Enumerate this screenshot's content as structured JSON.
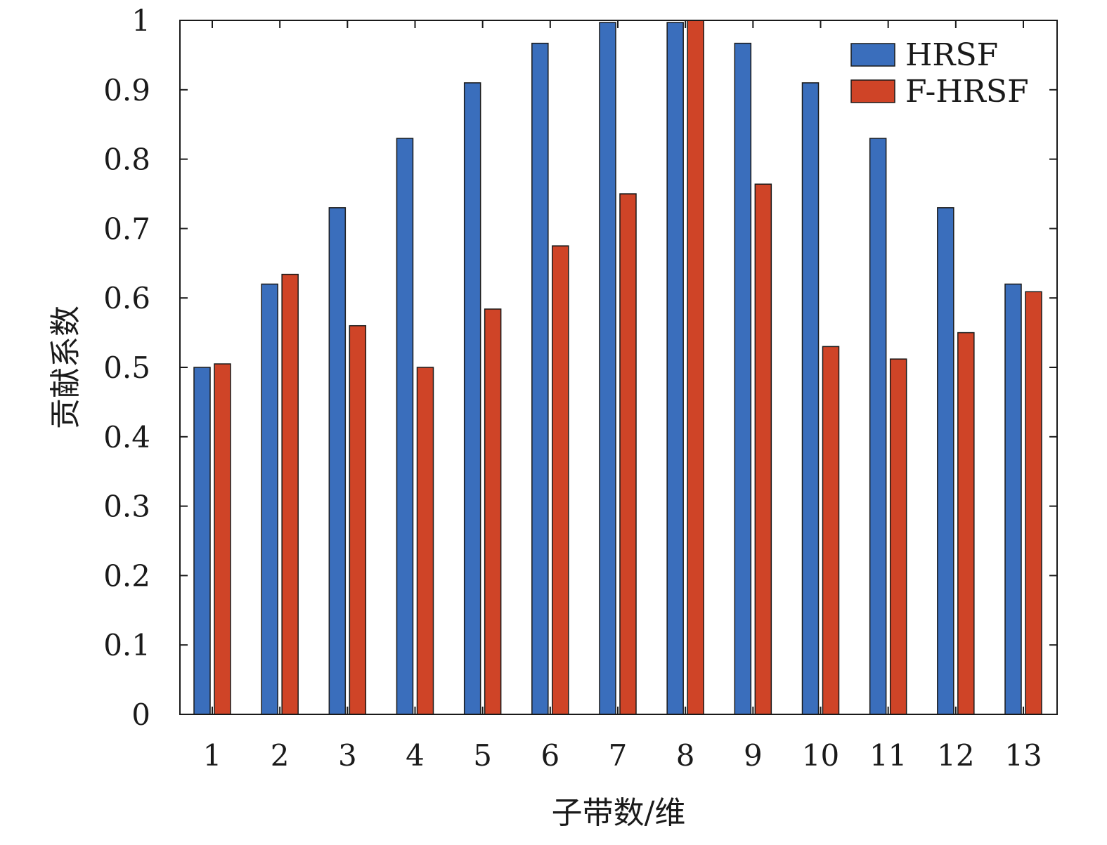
{
  "chart_data": {
    "type": "bar",
    "categories": [
      "1",
      "2",
      "3",
      "4",
      "5",
      "6",
      "7",
      "8",
      "9",
      "10",
      "11",
      "12",
      "13"
    ],
    "series": [
      {
        "name": "HRSF",
        "color": "#3a6ebc",
        "values": [
          0.5,
          0.62,
          0.73,
          0.83,
          0.91,
          0.967,
          0.997,
          0.997,
          0.967,
          0.91,
          0.83,
          0.73,
          0.62
        ]
      },
      {
        "name": "F-HRSF",
        "color": "#cf4427",
        "values": [
          0.505,
          0.634,
          0.56,
          0.5,
          0.584,
          0.675,
          0.75,
          1.0,
          0.764,
          0.53,
          0.512,
          0.55,
          0.609
        ]
      }
    ],
    "xlabel": "子带数/维",
    "ylabel": "贡献系数",
    "ylim": [
      0,
      1
    ],
    "yticks": [
      "0",
      "0.1",
      "0.2",
      "0.3",
      "0.4",
      "0.5",
      "0.6",
      "0.7",
      "0.8",
      "0.9",
      "1"
    ],
    "grid": false,
    "legend_position": "top-right"
  }
}
